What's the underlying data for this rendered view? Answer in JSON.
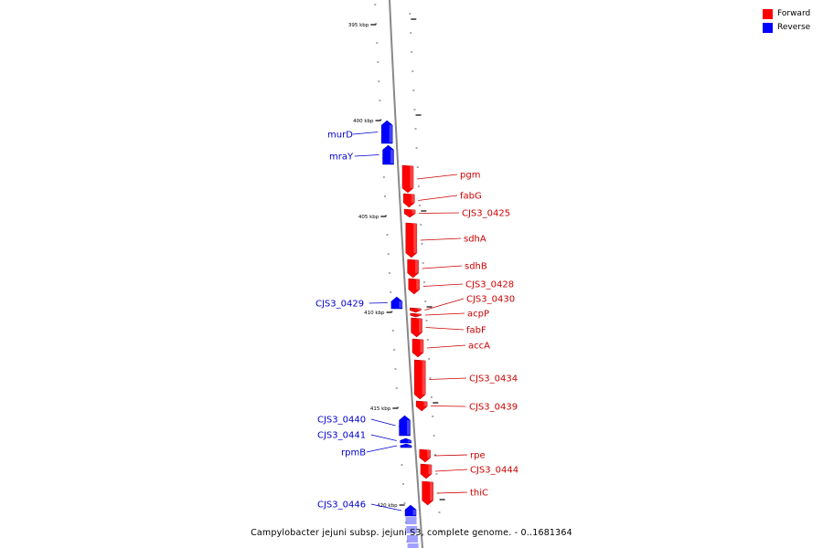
{
  "legend": [
    {
      "label": "Forward",
      "color": "#ff0000"
    },
    {
      "label": "Reverse",
      "color": "#0000ff"
    }
  ],
  "caption": "Campylobacter jejuni subsp. jejuni S3, complete genome. - 0..1681364",
  "scale_labels": [
    "395 kbp",
    "400 kbp",
    "405 kbp",
    "410 kbp",
    "415 kbp",
    "420 kbp"
  ],
  "colors": {
    "forward": "#ff0000",
    "reverse": "#0000ff",
    "forward_text": "#cc0000",
    "reverse_text": "#0000cc",
    "backbone": "#888888"
  },
  "genes": [
    {
      "name": "murD",
      "strand": "reverse"
    },
    {
      "name": "mraY",
      "strand": "reverse"
    },
    {
      "name": "pgm",
      "strand": "forward"
    },
    {
      "name": "fabG",
      "strand": "forward"
    },
    {
      "name": "CJS3_0425",
      "strand": "forward"
    },
    {
      "name": "sdhA",
      "strand": "forward"
    },
    {
      "name": "sdhB",
      "strand": "forward"
    },
    {
      "name": "CJS3_0428",
      "strand": "forward"
    },
    {
      "name": "CJS3_0429",
      "strand": "reverse"
    },
    {
      "name": "CJS3_0430",
      "strand": "forward"
    },
    {
      "name": "acpP",
      "strand": "forward"
    },
    {
      "name": "fabF",
      "strand": "forward"
    },
    {
      "name": "accA",
      "strand": "forward"
    },
    {
      "name": "CJS3_0434",
      "strand": "forward"
    },
    {
      "name": "CJS3_0439",
      "strand": "forward"
    },
    {
      "name": "CJS3_0440",
      "strand": "reverse"
    },
    {
      "name": "CJS3_0441",
      "strand": "reverse"
    },
    {
      "name": "rpmB",
      "strand": "reverse"
    },
    {
      "name": "rpe",
      "strand": "forward"
    },
    {
      "name": "CJS3_0444",
      "strand": "forward"
    },
    {
      "name": "thiC",
      "strand": "forward"
    },
    {
      "name": "CJS3_0446",
      "strand": "reverse"
    }
  ]
}
